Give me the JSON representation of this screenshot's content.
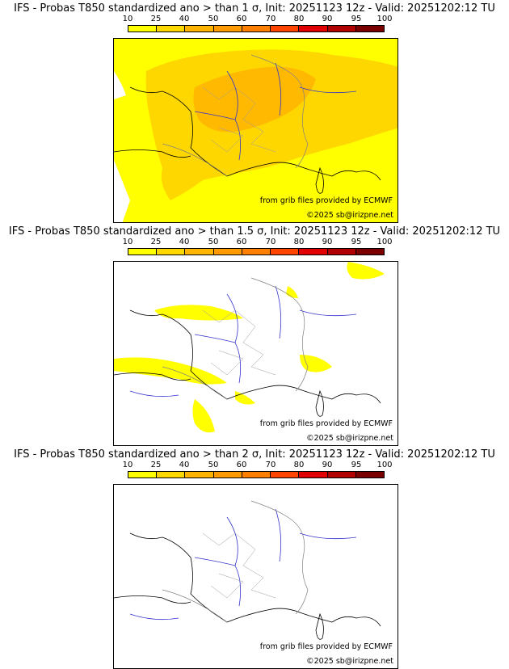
{
  "scale": {
    "ticks": [
      "10",
      "25",
      "40",
      "50",
      "60",
      "70",
      "80",
      "90",
      "95",
      "100"
    ],
    "colors": [
      "#ffff00",
      "#ffd700",
      "#ffb400",
      "#ff9a00",
      "#ff7f00",
      "#ff4500",
      "#e00000",
      "#b00000",
      "#7a0000"
    ]
  },
  "panels": [
    {
      "title": "IFS - Probas T850  standardized ano > than 1 σ, Init: 20251123 12z - Valid: 20251202:12 TU",
      "fill_level": "high",
      "source": "from grib files provided by ECMWF",
      "copyright": "©2025 sb@irizpne.net"
    },
    {
      "title": "IFS - Probas T850  standardized ano > than 1.5 σ, Init: 20251123 12z - Valid: 20251202:12 TU",
      "fill_level": "low",
      "source": "from grib files provided by ECMWF",
      "copyright": "©2025 sb@irizpne.net"
    },
    {
      "title": "IFS - Probas T850  standardized ano > than 2 σ, Init: 20251123 12z - Valid: 20251202:12 TU",
      "fill_level": "none",
      "source": "from grib files provided by ECMWF",
      "copyright": "©2025 sb@irizpne.net"
    }
  ]
}
